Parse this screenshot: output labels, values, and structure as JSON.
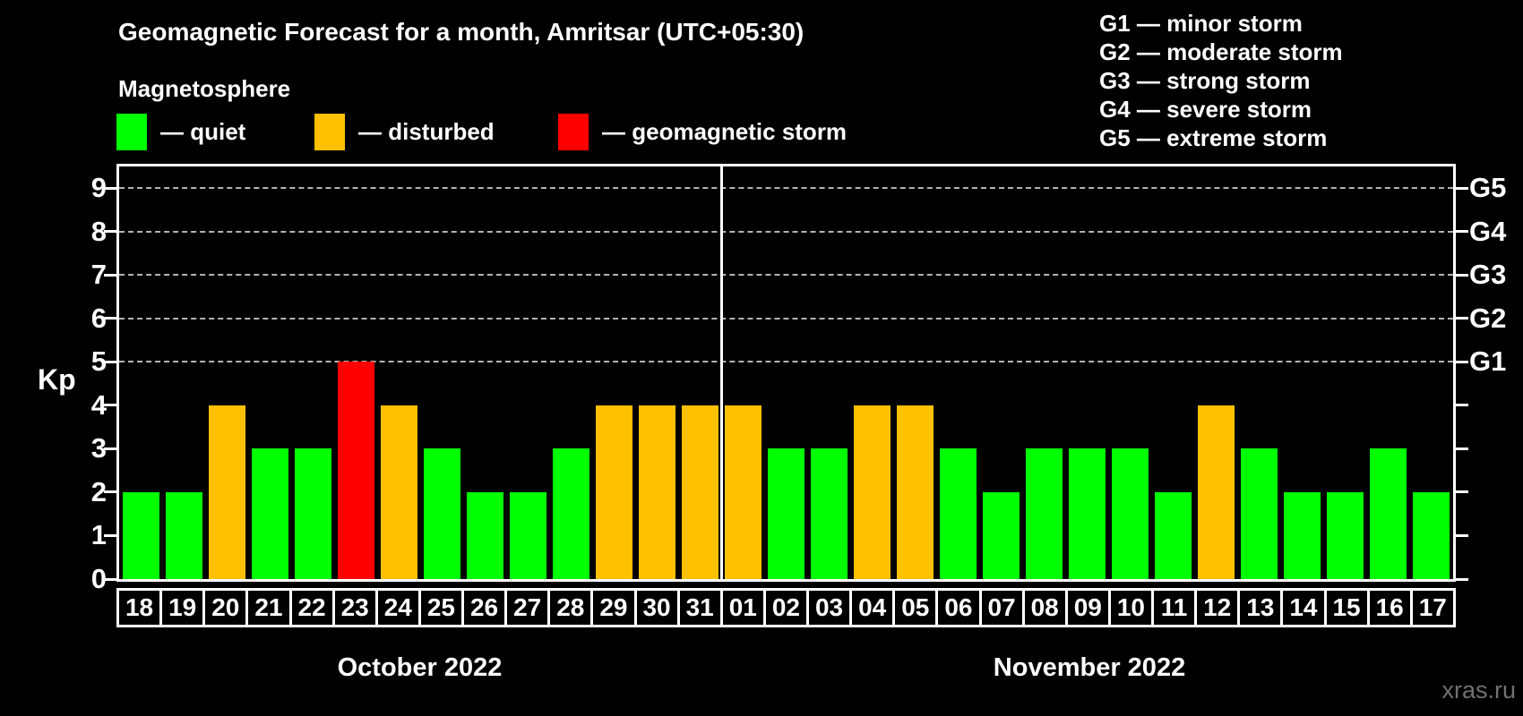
{
  "title": "Geomagnetic Forecast for a month, Amritsar (UTC+05:30)",
  "subtitle": "Magnetosphere",
  "legend": {
    "quiet": {
      "label": "— quiet",
      "color": "#00ff00"
    },
    "disturbed": {
      "label": "— disturbed",
      "color": "#ffc000"
    },
    "storm": {
      "label": "— geomagnetic storm",
      "color": "#ff0000"
    }
  },
  "g_legend": [
    "G1 — minor storm",
    "G2 — moderate storm",
    "G3 — strong storm",
    "G4 — severe storm",
    "G5 — extreme storm"
  ],
  "axes": {
    "y_label": "Kp",
    "y_ticks": [
      0,
      1,
      2,
      3,
      4,
      5,
      6,
      7,
      8,
      9
    ],
    "y_max": 9.5,
    "right_labels": [
      {
        "kp": 5,
        "label": "G1"
      },
      {
        "kp": 6,
        "label": "G2"
      },
      {
        "kp": 7,
        "label": "G3"
      },
      {
        "kp": 8,
        "label": "G4"
      },
      {
        "kp": 9,
        "label": "G5"
      }
    ]
  },
  "months": [
    {
      "name": "October 2022"
    },
    {
      "name": "November 2022"
    }
  ],
  "watermark": "xras.ru",
  "chart_data": {
    "type": "bar",
    "title": "Geomagnetic Forecast for a month, Amritsar (UTC+05:30)",
    "ylabel": "Kp",
    "ylim": [
      0,
      9.5
    ],
    "grid_levels": [
      5,
      6,
      7,
      8,
      9
    ],
    "color_map": {
      "quiet": "#00ff00",
      "disturbed": "#ffc000",
      "storm": "#ff0000"
    },
    "points": [
      {
        "m": 0,
        "month": "October 2022",
        "day": "18",
        "kp": 2,
        "status": "quiet"
      },
      {
        "m": 0,
        "month": "October 2022",
        "day": "19",
        "kp": 2,
        "status": "quiet"
      },
      {
        "m": 0,
        "month": "October 2022",
        "day": "20",
        "kp": 4,
        "status": "disturbed"
      },
      {
        "m": 0,
        "month": "October 2022",
        "day": "21",
        "kp": 3,
        "status": "quiet"
      },
      {
        "m": 0,
        "month": "October 2022",
        "day": "22",
        "kp": 3,
        "status": "quiet"
      },
      {
        "m": 0,
        "month": "October 2022",
        "day": "23",
        "kp": 5,
        "status": "storm"
      },
      {
        "m": 0,
        "month": "October 2022",
        "day": "24",
        "kp": 4,
        "status": "disturbed"
      },
      {
        "m": 0,
        "month": "October 2022",
        "day": "25",
        "kp": 3,
        "status": "quiet"
      },
      {
        "m": 0,
        "month": "October 2022",
        "day": "26",
        "kp": 2,
        "status": "quiet"
      },
      {
        "m": 0,
        "month": "October 2022",
        "day": "27",
        "kp": 2,
        "status": "quiet"
      },
      {
        "m": 0,
        "month": "October 2022",
        "day": "28",
        "kp": 3,
        "status": "quiet"
      },
      {
        "m": 0,
        "month": "October 2022",
        "day": "29",
        "kp": 4,
        "status": "disturbed"
      },
      {
        "m": 0,
        "month": "October 2022",
        "day": "30",
        "kp": 4,
        "status": "disturbed"
      },
      {
        "m": 0,
        "month": "October 2022",
        "day": "31",
        "kp": 4,
        "status": "disturbed"
      },
      {
        "m": 1,
        "month": "November 2022",
        "day": "01",
        "kp": 4,
        "status": "disturbed"
      },
      {
        "m": 1,
        "month": "November 2022",
        "day": "02",
        "kp": 3,
        "status": "quiet"
      },
      {
        "m": 1,
        "month": "November 2022",
        "day": "03",
        "kp": 3,
        "status": "quiet"
      },
      {
        "m": 1,
        "month": "November 2022",
        "day": "04",
        "kp": 4,
        "status": "disturbed"
      },
      {
        "m": 1,
        "month": "November 2022",
        "day": "05",
        "kp": 4,
        "status": "disturbed"
      },
      {
        "m": 1,
        "month": "November 2022",
        "day": "06",
        "kp": 3,
        "status": "quiet"
      },
      {
        "m": 1,
        "month": "November 2022",
        "day": "07",
        "kp": 2,
        "status": "quiet"
      },
      {
        "m": 1,
        "month": "November 2022",
        "day": "08",
        "kp": 3,
        "status": "quiet"
      },
      {
        "m": 1,
        "month": "November 2022",
        "day": "09",
        "kp": 3,
        "status": "quiet"
      },
      {
        "m": 1,
        "month": "November 2022",
        "day": "10",
        "kp": 3,
        "status": "quiet"
      },
      {
        "m": 1,
        "month": "November 2022",
        "day": "11",
        "kp": 2,
        "status": "quiet"
      },
      {
        "m": 1,
        "month": "November 2022",
        "day": "12",
        "kp": 4,
        "status": "disturbed"
      },
      {
        "m": 1,
        "month": "November 2022",
        "day": "13",
        "kp": 3,
        "status": "quiet"
      },
      {
        "m": 1,
        "month": "November 2022",
        "day": "14",
        "kp": 2,
        "status": "quiet"
      },
      {
        "m": 1,
        "month": "November 2022",
        "day": "15",
        "kp": 2,
        "status": "quiet"
      },
      {
        "m": 1,
        "month": "November 2022",
        "day": "16",
        "kp": 3,
        "status": "quiet"
      },
      {
        "m": 1,
        "month": "November 2022",
        "day": "17",
        "kp": 2,
        "status": "quiet"
      }
    ]
  }
}
